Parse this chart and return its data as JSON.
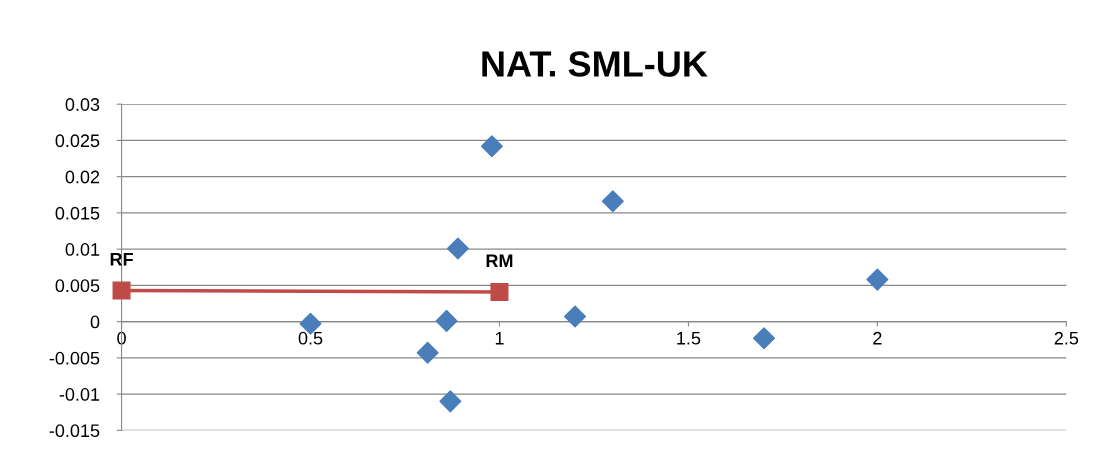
{
  "chart_data": {
    "type": "scatter",
    "title": "NAT. SML-UK",
    "series": [
      {
        "color": "#4a7ebb",
        "marker": "diamond",
        "x": [
          0.5,
          0.81,
          0.86,
          0.87,
          0.89,
          0.98,
          1.2,
          1.3,
          1.7,
          2.0
        ],
        "values": [
          -0.0003,
          -0.0043,
          0.0001,
          -0.011,
          0.0101,
          0.0242,
          0.0007,
          0.0166,
          -0.0023,
          0.0058
        ]
      },
      {
        "type": "line",
        "color": "#be4b48",
        "marker": "square",
        "x": [
          0,
          1
        ],
        "values": [
          0.0043,
          0.0041
        ]
      }
    ],
    "annotations": [
      {
        "text": "RF",
        "x": 0,
        "y": 0.0043
      },
      {
        "text": "RM",
        "x": 1,
        "y": 0.0041
      }
    ],
    "xlim": [
      0,
      2.5
    ],
    "xticks": [
      0,
      0.5,
      1,
      1.5,
      2,
      2.5
    ],
    "ylim": [
      -0.015,
      0.03
    ],
    "yticks": [
      -0.015,
      -0.01,
      -0.005,
      0,
      0.005,
      0.01,
      0.015,
      0.02,
      0.025,
      0.03
    ],
    "grid": "y",
    "legend": false
  }
}
